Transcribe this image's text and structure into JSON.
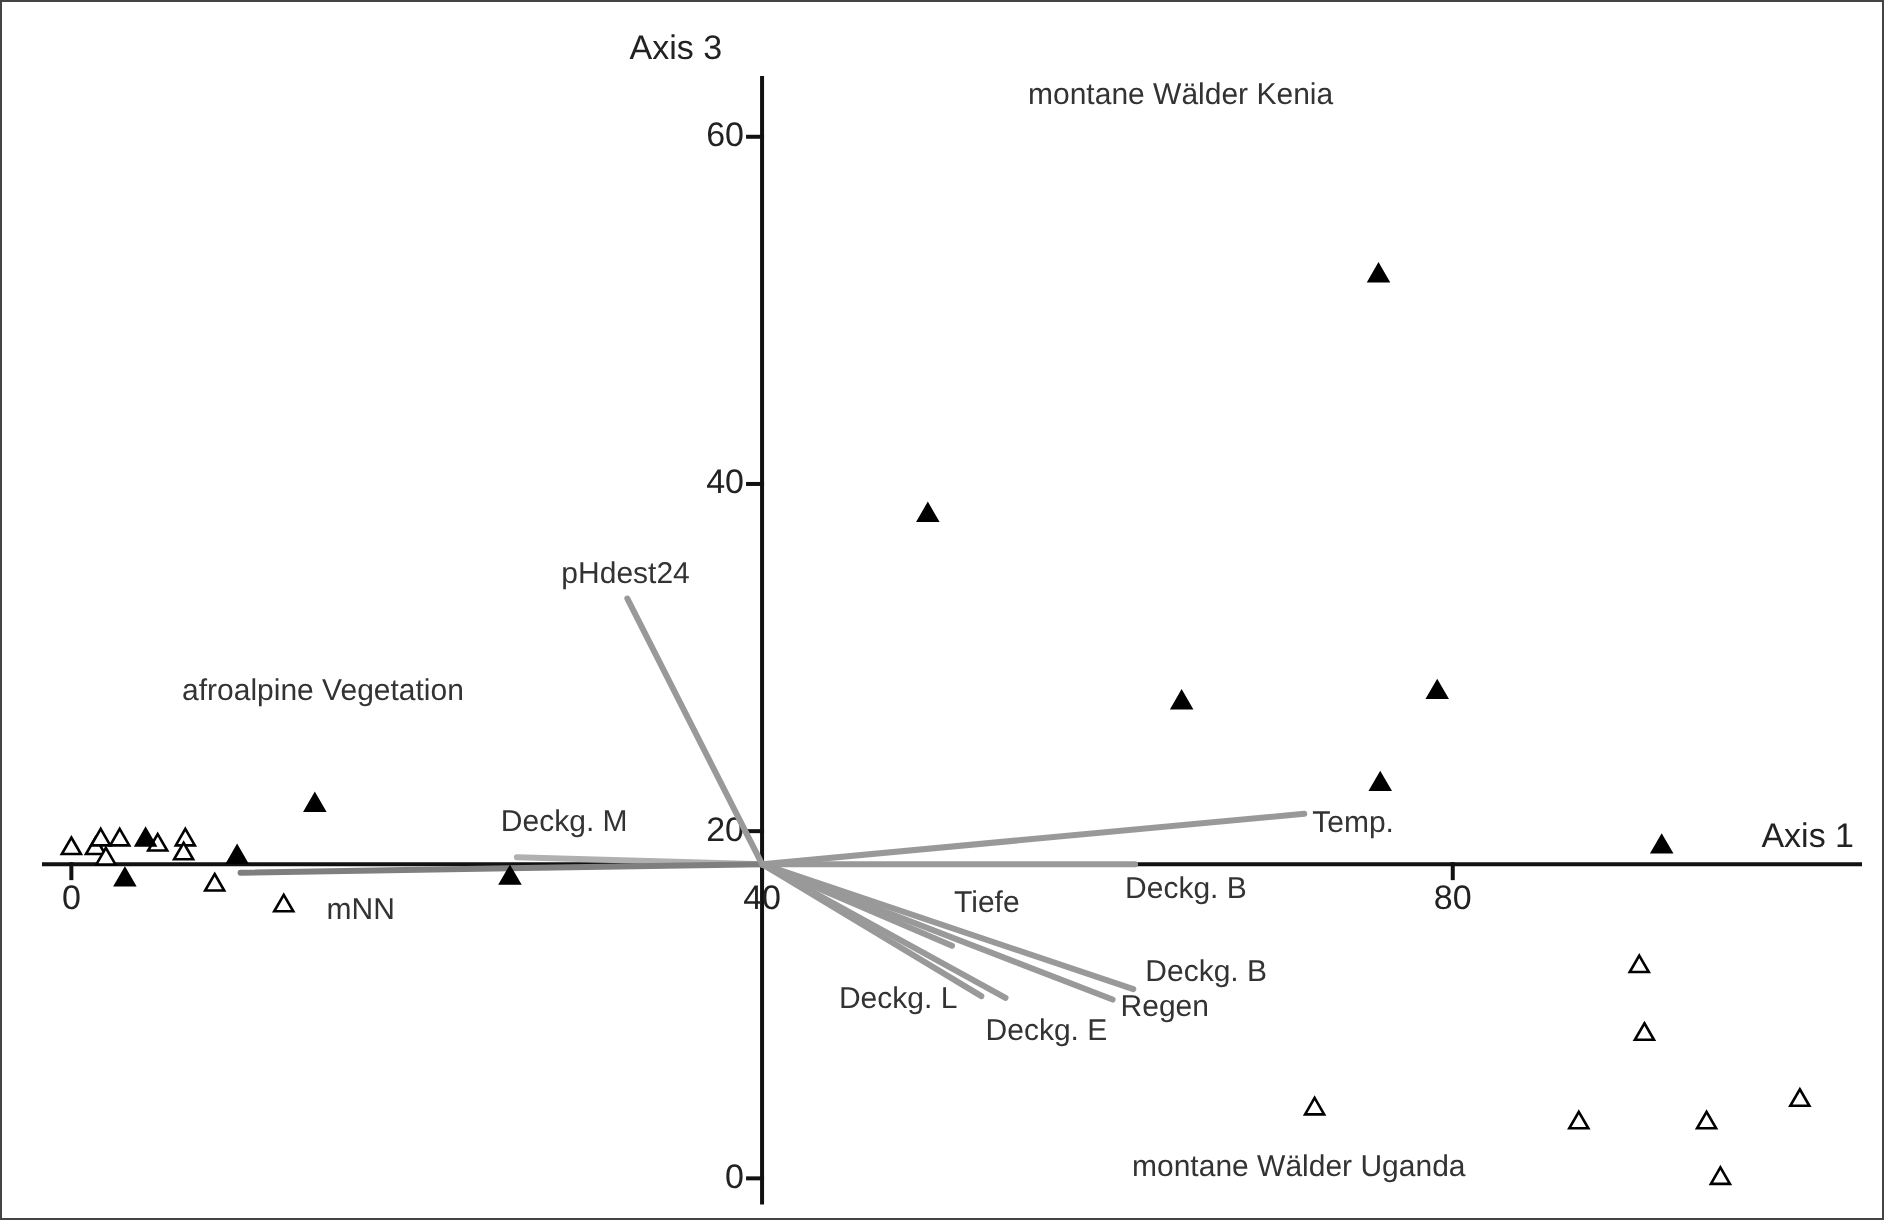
{
  "chart_data": {
    "type": "scatter",
    "xlabel": "Axis 1",
    "ylabel": "Axis 3",
    "xlim": [
      -1.7,
      103.7
    ],
    "ylim": [
      -1.5,
      63.5
    ],
    "xticks": [
      0,
      40,
      80
    ],
    "yticks": [
      0,
      20,
      40,
      60
    ],
    "grid": false,
    "legend": false,
    "marker": "triangle",
    "series": [
      {
        "color": "#000000",
        "x": [
          14.1,
          4.3,
          3.1,
          9.6,
          25.4,
          49.6,
          64.3,
          79.1,
          75.8,
          92.1,
          75.7
        ],
        "values": [
          21.5,
          19.5,
          17.2,
          18.5,
          17.3,
          38.2,
          27.4,
          28.0,
          22.7,
          19.1,
          52.0
        ]
      },
      {
        "color": "#ffffff",
        "x": [
          0,
          1.4,
          1.7,
          2.0,
          2.8,
          5.0,
          6.6,
          6.5,
          8.3,
          12.3,
          90.8,
          91.1,
          72.0,
          87.3,
          94.7,
          100.1,
          95.5
        ],
        "values": [
          19.0,
          19.0,
          19.5,
          18.4,
          19.5,
          19.2,
          19.5,
          18.7,
          16.9,
          15.7,
          12.2,
          8.3,
          4.0,
          3.2,
          3.2,
          4.5,
          0.0
        ]
      },
      {
        "type": "line",
        "name": "pHdest24",
        "color": "#999999",
        "marker": "none",
        "x": [
          40,
          32.2
        ],
        "values": [
          18.1,
          33.4
        ]
      },
      {
        "type": "line",
        "name": "mNN",
        "color": "#7f7f7f",
        "marker": "none",
        "x": [
          40,
          9.8
        ],
        "values": [
          18.1,
          17.6
        ]
      },
      {
        "type": "line",
        "name": "Deckg. M",
        "color": "#b0b0b0",
        "marker": "none",
        "x": [
          40,
          25.8
        ],
        "values": [
          18.1,
          18.5
        ]
      },
      {
        "type": "line",
        "name": "Temp.",
        "color": "#999999",
        "marker": "none",
        "x": [
          40,
          71.4
        ],
        "values": [
          18.1,
          21.0
        ]
      },
      {
        "type": "line",
        "name": "Deckg. B",
        "color": "#999999",
        "marker": "none",
        "x": [
          40,
          61.6
        ],
        "values": [
          18.1,
          18.1
        ]
      },
      {
        "type": "line",
        "name": "Tiefe",
        "color": "#999999",
        "marker": "none",
        "x": [
          40,
          51.0
        ],
        "values": [
          18.1,
          13.4
        ]
      },
      {
        "type": "line",
        "name": "Deckg. B",
        "color": "#999999",
        "marker": "none",
        "x": [
          40,
          61.5
        ],
        "values": [
          18.1,
          10.9
        ]
      },
      {
        "type": "line",
        "name": "Regen",
        "color": "#999999",
        "marker": "none",
        "x": [
          40,
          60.3
        ],
        "values": [
          18.1,
          10.3
        ]
      },
      {
        "type": "line",
        "name": "Deckg. E",
        "color": "#999999",
        "marker": "none",
        "x": [
          40,
          54.1
        ],
        "values": [
          18.1,
          10.4
        ]
      },
      {
        "type": "line",
        "name": "Deckg. L",
        "color": "#999999",
        "marker": "none",
        "x": [
          40,
          52.7
        ],
        "values": [
          18.1,
          10.5
        ]
      }
    ],
    "annotations": [
      "afroalpine Vegetation",
      "montane Wälder Kenia",
      "montane Wälder Uganda"
    ]
  }
}
